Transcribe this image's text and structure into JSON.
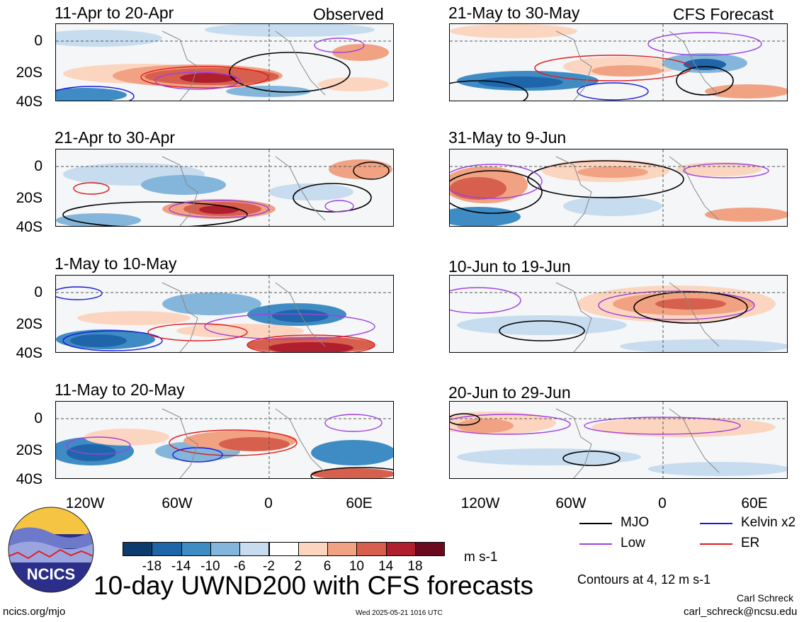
{
  "panels": {
    "observed_label": "Observed",
    "forecast_label": "CFS Forecast",
    "left": [
      {
        "title": "11-Apr to 20-Apr"
      },
      {
        "title": "21-Apr to 30-Apr"
      },
      {
        "title": "1-May to 10-May"
      },
      {
        "title": "11-May to 20-May"
      }
    ],
    "right": [
      {
        "title": "21-May to 30-May"
      },
      {
        "title": "31-May to 9-Jun"
      },
      {
        "title": "10-Jun to 19-Jun"
      },
      {
        "title": "20-Jun to 29-Jun"
      }
    ]
  },
  "axes": {
    "lat_ticks": [
      "0",
      "20S",
      "40S"
    ],
    "lon_ticks": [
      "120W",
      "60W",
      "0",
      "60E"
    ]
  },
  "colorbar": {
    "labels": [
      "-18",
      "-14",
      "-10",
      "-6",
      "-2",
      "2",
      "6",
      "10",
      "14",
      "18"
    ],
    "colors": [
      "#0d3b6e",
      "#1f65aa",
      "#3f8cc4",
      "#84b5da",
      "#c7dcef",
      "#ffffff",
      "#fcd5c0",
      "#f1a282",
      "#d6604d",
      "#b01f2d",
      "#6b0a1f"
    ],
    "units": "m s-1"
  },
  "legend": {
    "items": [
      {
        "label": "MJO",
        "color": "#000000"
      },
      {
        "label": "Kelvin x2",
        "color": "#1a1adc"
      },
      {
        "label": "Low",
        "color": "#a040e0"
      },
      {
        "label": "ER",
        "color": "#e01a1a"
      }
    ],
    "contours_note": "Contours at 4, 12 m s-1"
  },
  "logo": {
    "text": "NCICS"
  },
  "footer": {
    "main_title": "10-day UWND200 with CFS forecasts",
    "url": "ncics.org/mjo",
    "timestamp": "Wed 2025-05-21 1016 UTC",
    "author": "Carl Schreck",
    "email": "carl_schreck@ncsu.edu"
  }
}
